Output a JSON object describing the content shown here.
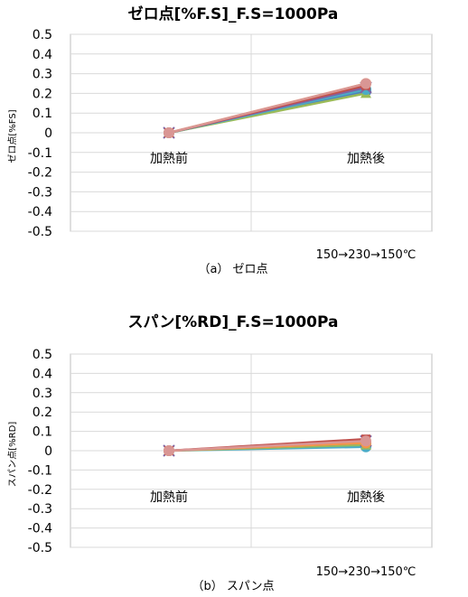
{
  "chart_data": [
    {
      "type": "line",
      "title": "ゼロ点[%F.S]_F.S=1000Pa",
      "ylabel": "ゼロ点[%FS]",
      "xlabel": "",
      "categories": [
        "加熱前",
        "加熱後"
      ],
      "ylim": [
        -0.5,
        0.5
      ],
      "yticks": [
        "0.5",
        "0.4",
        "0.3",
        "0.2",
        "0.1",
        "0",
        "-0.1",
        "-0.2",
        "-0.3",
        "-0.4",
        "-0.5"
      ],
      "grid": true,
      "note": "150→230→150℃",
      "caption": "（a） ゼロ点",
      "series": [
        {
          "values": [
            0,
            0.21
          ],
          "color": "#4f81bd",
          "marker": "circle"
        },
        {
          "values": [
            0,
            0.2
          ],
          "color": "#9bbb59",
          "marker": "triangle"
        },
        {
          "values": [
            0,
            0.22
          ],
          "color": "#4bacc6",
          "marker": "circle"
        },
        {
          "values": [
            0,
            0.23
          ],
          "color": "#8064a2",
          "marker": "x"
        },
        {
          "values": [
            0,
            0.24
          ],
          "color": "#c0504d",
          "marker": "square"
        },
        {
          "values": [
            0,
            0.25
          ],
          "color": "#f79646",
          "marker": "circle"
        },
        {
          "values": [
            0,
            0.25
          ],
          "color": "#d99694",
          "marker": "circle"
        }
      ]
    },
    {
      "type": "line",
      "title": "スパン[%RD]_F.S=1000Pa",
      "ylabel": "スパン点[%RD]",
      "xlabel": "",
      "categories": [
        "加熱前",
        "加熱後"
      ],
      "ylim": [
        -0.5,
        0.5
      ],
      "yticks": [
        "0.5",
        "0.4",
        "0.3",
        "0.2",
        "0.1",
        "0",
        "-0.1",
        "-0.2",
        "-0.3",
        "-0.4",
        "-0.5"
      ],
      "grid": true,
      "note": "150→230→150℃",
      "caption": "（b） スパン点",
      "series": [
        {
          "values": [
            0,
            0.02
          ],
          "color": "#4bacc6",
          "marker": "circle"
        },
        {
          "values": [
            0,
            0.03
          ],
          "color": "#9bbb59",
          "marker": "triangle"
        },
        {
          "values": [
            0,
            0.04
          ],
          "color": "#4f81bd",
          "marker": "circle"
        },
        {
          "values": [
            0,
            0.05
          ],
          "color": "#8064a2",
          "marker": "x"
        },
        {
          "values": [
            0,
            0.06
          ],
          "color": "#c0504d",
          "marker": "square"
        },
        {
          "values": [
            0,
            0.04
          ],
          "color": "#f79646",
          "marker": "circle"
        },
        {
          "values": [
            0,
            0.05
          ],
          "color": "#d99694",
          "marker": "circle"
        }
      ]
    }
  ]
}
